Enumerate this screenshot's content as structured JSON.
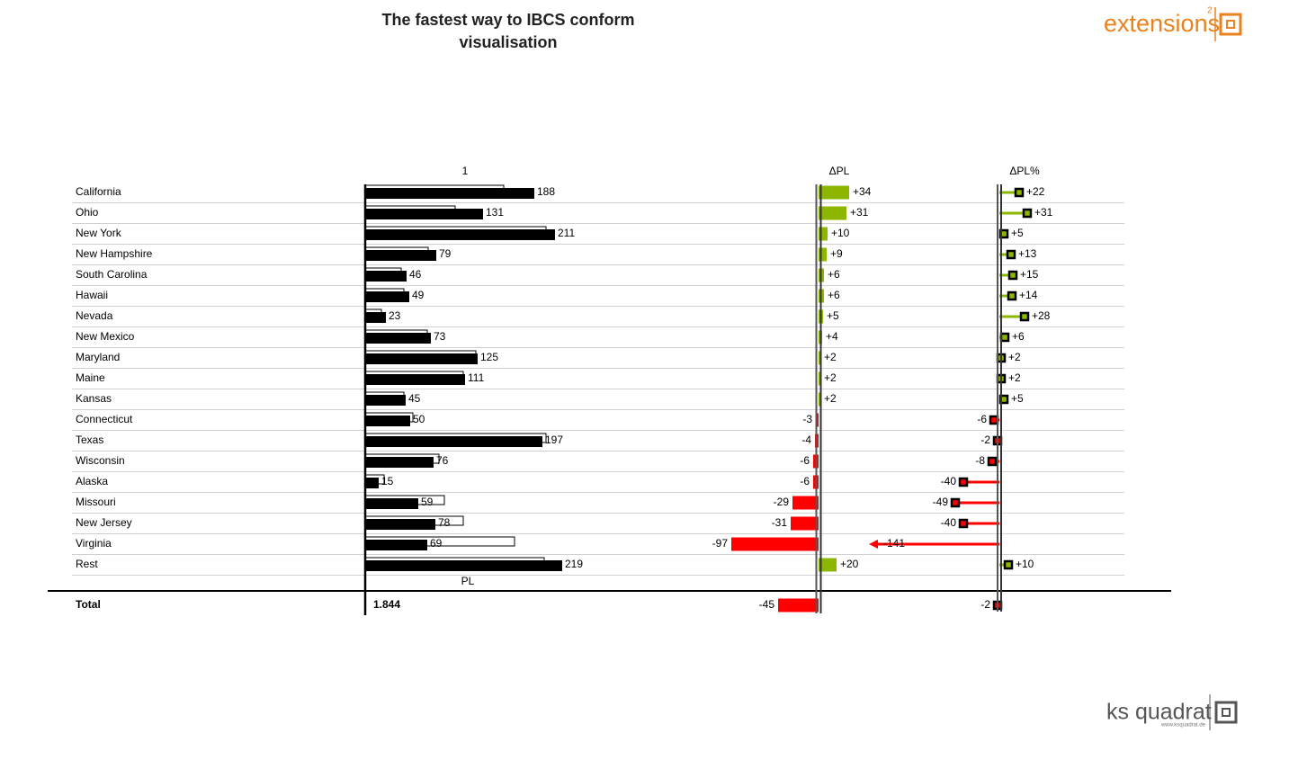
{
  "title": "The fastest  way to IBCS conform visualisation",
  "total_label": "Total",
  "logos": {
    "top": "extensions",
    "top_sup": "2",
    "bottom": "ks quadrat",
    "bottom_url": "www.ksquadrat.de"
  },
  "chart_data": [
    {
      "type": "bar",
      "orientation": "horizontal",
      "categories": [
        "California",
        "Ohio",
        "New York",
        "New Hampshire",
        "South Carolina",
        "Hawaii",
        "Nevada",
        "New Mexico",
        "Maryland",
        "Maine",
        "Kansas",
        "Connecticut",
        "Texas",
        "Wisconsin",
        "Alaska",
        "Missouri",
        "New Jersey",
        "Virginia",
        "Rest"
      ],
      "xlim": [
        0,
        250
      ],
      "series": [
        {
          "name": "1",
          "color": "#000000",
          "values": [
            188,
            131,
            211,
            79,
            46,
            49,
            23,
            73,
            125,
            111,
            45,
            50,
            197,
            76,
            15,
            59,
            78,
            69,
            219
          ]
        },
        {
          "name": "PL",
          "color": "#ffffff",
          "values": [
            154,
            100,
            201,
            70,
            40,
            43,
            18,
            69,
            123,
            109,
            43,
            53,
            201,
            82,
            21,
            88,
            109,
            166,
            199
          ]
        }
      ],
      "total": {
        "value": 1844,
        "label": "1.844"
      }
    },
    {
      "type": "bar",
      "orientation": "horizontal",
      "title": "ΔPL",
      "xlim": [
        -100,
        100
      ],
      "positive_color": "#8db600",
      "negative_color": "#ff0000",
      "values": [
        34,
        31,
        10,
        9,
        6,
        6,
        5,
        4,
        2,
        2,
        2,
        -3,
        -4,
        -6,
        -6,
        -29,
        -31,
        -97,
        20
      ],
      "value_labels": [
        "+34",
        "+31",
        "+10",
        "+9",
        "+6",
        "+6",
        "+5",
        "+4",
        "+2",
        "+2",
        "+2",
        "-3",
        "-4",
        "-6",
        "-6",
        "-29",
        "-31",
        "-97",
        "+20"
      ],
      "total": -45
    },
    {
      "type": "pin",
      "orientation": "horizontal",
      "title": "ΔPL%",
      "xlim": [
        -145,
        145
      ],
      "positive_color": "#8db600",
      "negative_color": "#ff0000",
      "values": [
        22,
        31,
        5,
        13,
        15,
        14,
        28,
        6,
        2,
        2,
        5,
        -6,
        -2,
        -8,
        -40,
        -49,
        -40,
        -141,
        10
      ],
      "value_labels": [
        "+22",
        "+31",
        "+5",
        "+13",
        "+15",
        "+14",
        "+28",
        "+6",
        "+2",
        "+2",
        "+5",
        "-6",
        "-2",
        "-8",
        "-40",
        "-49",
        "-40",
        "-141",
        "+10"
      ],
      "total": -2
    }
  ]
}
